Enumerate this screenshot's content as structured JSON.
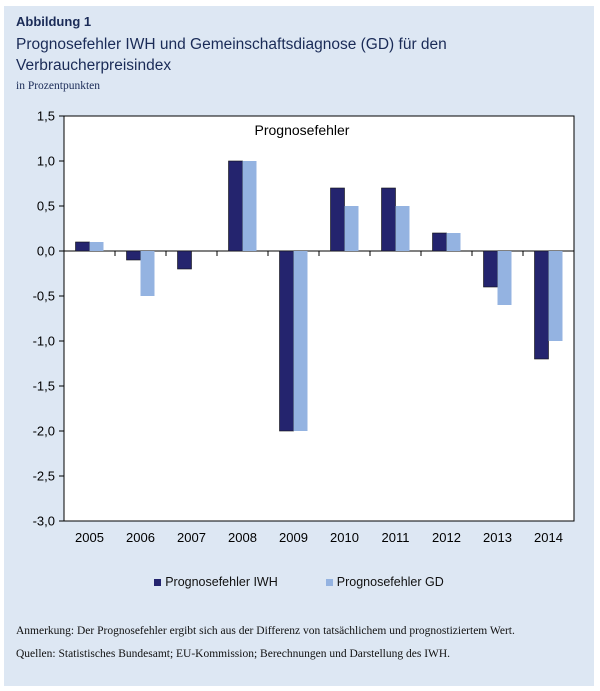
{
  "figure": {
    "label": "Abbildung 1",
    "title": "Prognosefehler IWH und Gemeinschaftsdiagnose (GD) für den Verbraucherpreisindex",
    "subtitle": "in Prozentpunkten"
  },
  "notes": {
    "remark": "Anmerkung: Der Prognosefehler ergibt sich aus der Differenz von tatsächlichem und prognostiziertem Wert.",
    "sources": "Quellen: Statistisches Bundesamt; EU-Kommission; Berechnungen und Darstellung des IWH."
  },
  "chart_data": {
    "type": "bar",
    "title": "Prognosefehler",
    "xlabel": "",
    "ylabel": "",
    "categories": [
      "2005",
      "2006",
      "2007",
      "2008",
      "2009",
      "2010",
      "2011",
      "2012",
      "2013",
      "2014"
    ],
    "series": [
      {
        "name": "Prognosefehler IWH",
        "color": "#24246e",
        "values": [
          0.1,
          -0.1,
          -0.2,
          1.0,
          -2.0,
          0.7,
          0.7,
          0.2,
          -0.4,
          -1.2
        ]
      },
      {
        "name": "Prognosefehler GD",
        "color": "#94b3e1",
        "values": [
          0.1,
          -0.5,
          null,
          1.0,
          -2.0,
          0.5,
          0.5,
          0.2,
          -0.6,
          -1.0
        ]
      }
    ],
    "ylim": [
      -3.0,
      1.5
    ],
    "yticks": [
      "1,5",
      "1,0",
      "0,5",
      "0,0",
      "-0,5",
      "-1,0",
      "-1,5",
      "-2,0",
      "-2,5",
      "-3,0"
    ],
    "grid": false,
    "legend_position": "bottom"
  }
}
